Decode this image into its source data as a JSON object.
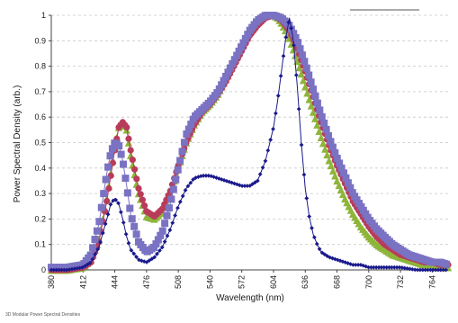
{
  "chart_data": {
    "type": "line",
    "title": "",
    "xlabel": "Wavelength (nm)",
    "ylabel": "Power Spectral Density (arb.)",
    "xlim": [
      380,
      780
    ],
    "ylim": [
      0,
      1
    ],
    "x_ticks": [
      380,
      412,
      444,
      476,
      508,
      540,
      572,
      604,
      636,
      668,
      700,
      732,
      764
    ],
    "y_ticks": [
      0,
      0.1,
      0.2,
      0.3,
      0.4,
      0.5,
      0.6,
      0.7,
      0.8,
      0.9,
      1
    ],
    "x_tick_labels": [
      "380",
      "412",
      "444",
      "476",
      "508",
      "540",
      "572",
      "604",
      "636",
      "668",
      "700",
      "732",
      "764"
    ],
    "y_tick_labels": [
      "0",
      "0.1",
      "0.2",
      "0.3",
      "0.4",
      "0.5",
      "0.6",
      "0.7",
      "0.8",
      "0.9",
      "1"
    ],
    "grid": "horizontal dashed",
    "legend": "none visible",
    "footnote": "3D Modular Power Spectral Densities",
    "series": [
      {
        "color": "#8db53a",
        "marker": "triangle",
        "x": [
          380,
          396,
          412,
          420,
          428,
          436,
          444,
          448,
          452,
          456,
          460,
          468,
          476,
          484,
          492,
          500,
          508,
          516,
          524,
          532,
          540,
          548,
          556,
          564,
          572,
          580,
          588,
          596,
          604,
          608,
          612,
          620,
          628,
          636,
          644,
          652,
          660,
          668,
          676,
          684,
          692,
          700,
          708,
          716,
          724,
          732,
          740,
          748,
          756,
          764,
          772,
          780
        ],
        "y": [
          0.0,
          0.0,
          0.01,
          0.04,
          0.12,
          0.28,
          0.48,
          0.56,
          0.58,
          0.55,
          0.45,
          0.3,
          0.21,
          0.2,
          0.23,
          0.3,
          0.4,
          0.5,
          0.57,
          0.62,
          0.65,
          0.69,
          0.75,
          0.81,
          0.88,
          0.94,
          0.98,
          1.0,
          1.0,
          0.99,
          0.97,
          0.91,
          0.82,
          0.72,
          0.62,
          0.52,
          0.43,
          0.35,
          0.28,
          0.22,
          0.17,
          0.13,
          0.1,
          0.08,
          0.06,
          0.05,
          0.04,
          0.03,
          0.02,
          0.02,
          0.01,
          0.01
        ]
      },
      {
        "color": "#b83c5a",
        "marker": "circle",
        "x": [
          380,
          396,
          412,
          420,
          428,
          436,
          444,
          448,
          452,
          456,
          460,
          468,
          476,
          484,
          492,
          500,
          508,
          516,
          524,
          532,
          540,
          548,
          556,
          564,
          572,
          580,
          588,
          596,
          604,
          612,
          620,
          628,
          636,
          644,
          652,
          660,
          668,
          676,
          684,
          692,
          700,
          708,
          716,
          724,
          732,
          740,
          748,
          756,
          764,
          772,
          780
        ],
        "y": [
          0.0,
          0.0,
          0.01,
          0.03,
          0.11,
          0.27,
          0.47,
          0.56,
          0.58,
          0.56,
          0.47,
          0.32,
          0.23,
          0.21,
          0.24,
          0.31,
          0.41,
          0.5,
          0.57,
          0.62,
          0.65,
          0.69,
          0.74,
          0.8,
          0.86,
          0.92,
          0.96,
          0.99,
          1.0,
          0.98,
          0.94,
          0.87,
          0.78,
          0.68,
          0.58,
          0.49,
          0.41,
          0.34,
          0.27,
          0.22,
          0.17,
          0.13,
          0.1,
          0.08,
          0.06,
          0.05,
          0.04,
          0.03,
          0.03,
          0.02,
          0.02
        ]
      },
      {
        "color": "#7a72c2",
        "marker": "square",
        "x": [
          380,
          396,
          412,
          420,
          428,
          436,
          440,
          444,
          448,
          452,
          456,
          460,
          468,
          476,
          484,
          492,
          500,
          508,
          516,
          524,
          532,
          540,
          548,
          556,
          564,
          572,
          580,
          588,
          596,
          604,
          612,
          620,
          628,
          636,
          644,
          652,
          660,
          668,
          676,
          684,
          692,
          700,
          708,
          716,
          724,
          732,
          740,
          748,
          756,
          764,
          772,
          780
        ],
        "y": [
          0.01,
          0.01,
          0.02,
          0.06,
          0.18,
          0.38,
          0.46,
          0.5,
          0.49,
          0.43,
          0.33,
          0.22,
          0.11,
          0.07,
          0.09,
          0.15,
          0.26,
          0.4,
          0.53,
          0.6,
          0.63,
          0.66,
          0.7,
          0.76,
          0.82,
          0.88,
          0.94,
          0.98,
          1.0,
          1.0,
          0.99,
          0.96,
          0.9,
          0.81,
          0.71,
          0.61,
          0.52,
          0.44,
          0.37,
          0.3,
          0.25,
          0.2,
          0.16,
          0.13,
          0.1,
          0.08,
          0.06,
          0.05,
          0.04,
          0.03,
          0.03,
          0.02
        ]
      },
      {
        "color": "#1a1a8c",
        "marker": "diamond",
        "x": [
          380,
          396,
          412,
          420,
          428,
          436,
          440,
          444,
          448,
          452,
          456,
          460,
          468,
          476,
          484,
          492,
          500,
          508,
          516,
          524,
          532,
          540,
          548,
          556,
          564,
          572,
          580,
          588,
          596,
          604,
          608,
          612,
          616,
          620,
          624,
          628,
          632,
          636,
          640,
          644,
          648,
          652,
          660,
          668,
          676,
          684,
          692,
          700,
          716,
          732,
          748,
          764,
          780
        ],
        "y": [
          0.0,
          0.0,
          0.01,
          0.03,
          0.09,
          0.2,
          0.26,
          0.28,
          0.26,
          0.2,
          0.13,
          0.08,
          0.04,
          0.03,
          0.05,
          0.09,
          0.16,
          0.25,
          0.32,
          0.36,
          0.37,
          0.37,
          0.36,
          0.35,
          0.34,
          0.33,
          0.33,
          0.35,
          0.43,
          0.56,
          0.66,
          0.78,
          0.9,
          0.99,
          0.9,
          0.72,
          0.5,
          0.32,
          0.21,
          0.14,
          0.1,
          0.07,
          0.05,
          0.04,
          0.03,
          0.02,
          0.02,
          0.01,
          0.01,
          0.01,
          0.0,
          0.0,
          0.0
        ]
      }
    ]
  }
}
